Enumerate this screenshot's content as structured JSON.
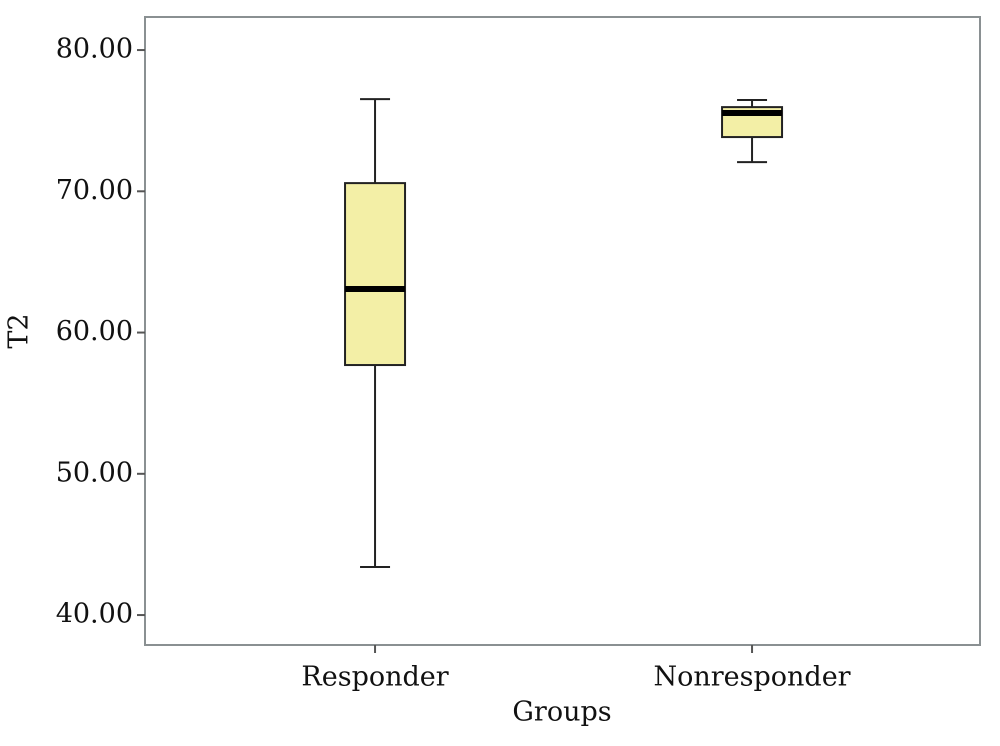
{
  "chart_data": {
    "type": "box",
    "x_label": "Groups",
    "y_label": "T2",
    "categories": [
      "Responder",
      "Nonresponder"
    ],
    "min": [
      43.4,
      72.07
    ],
    "q1": [
      57.7,
      73.84
    ],
    "median": [
      63.08,
      75.54
    ],
    "q3": [
      70.58,
      75.96
    ],
    "max": [
      76.53,
      76.46
    ],
    "color": "#f3efa6",
    "ylim": [
      37.88,
      82.34
    ],
    "yticks": [
      {
        "value": 40,
        "label": "40.00"
      },
      {
        "value": 50,
        "label": "50.00"
      },
      {
        "value": 60,
        "label": "60.00"
      },
      {
        "value": 70,
        "label": "70.00"
      },
      {
        "value": 80,
        "label": "80.00"
      }
    ]
  }
}
